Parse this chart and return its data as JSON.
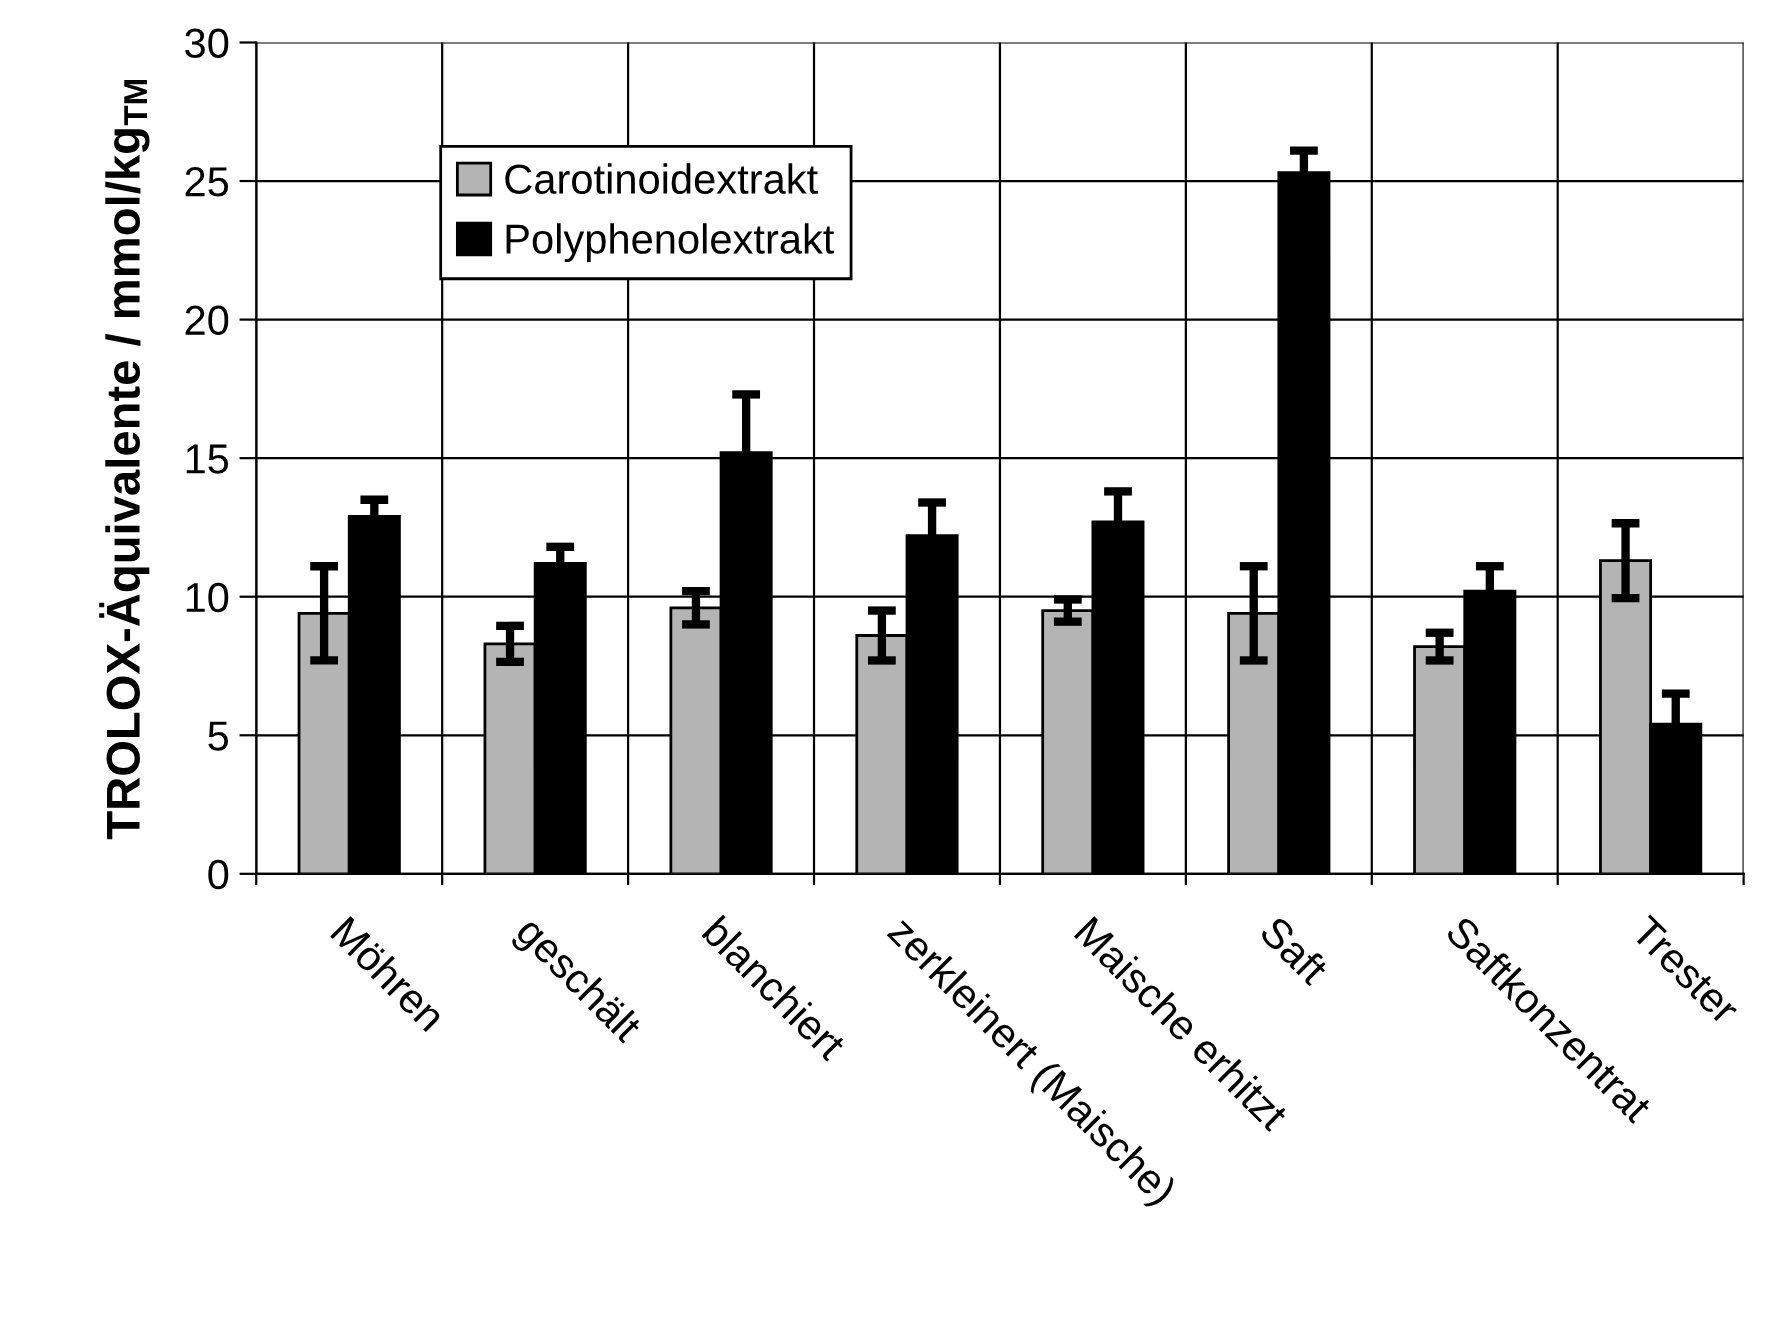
{
  "chart_data": {
    "type": "bar",
    "ylabel": "TROLOX-Äquivalente / mmol/kg$_{TM}$",
    "categories": [
      "Möhren",
      "geschält",
      "blanchiert",
      "zerkleinert (Maische)",
      "Maische erhitzt",
      "Saft",
      "Saftkonzentrat",
      "Trester"
    ],
    "series": [
      {
        "name": "Carotinoidextrakt",
        "color": "#b4b4b4",
        "values": [
          9.4,
          8.3,
          9.6,
          8.6,
          9.5,
          9.4,
          8.2,
          11.3
        ],
        "errors": [
          1.7,
          0.65,
          0.6,
          0.9,
          0.4,
          1.7,
          0.5,
          1.35
        ]
      },
      {
        "name": "Polyphenolextrakt",
        "color": "#000000",
        "values": [
          12.9,
          11.2,
          15.2,
          12.2,
          12.7,
          25.3,
          10.2,
          5.4
        ],
        "errors": [
          0.6,
          0.6,
          2.1,
          1.2,
          1.1,
          0.8,
          0.9,
          1.1
        ]
      }
    ],
    "ylim": [
      0,
      30
    ],
    "yticks": [
      0,
      5,
      10,
      15,
      20,
      25,
      30
    ],
    "grid": true,
    "legend": "top left"
  }
}
